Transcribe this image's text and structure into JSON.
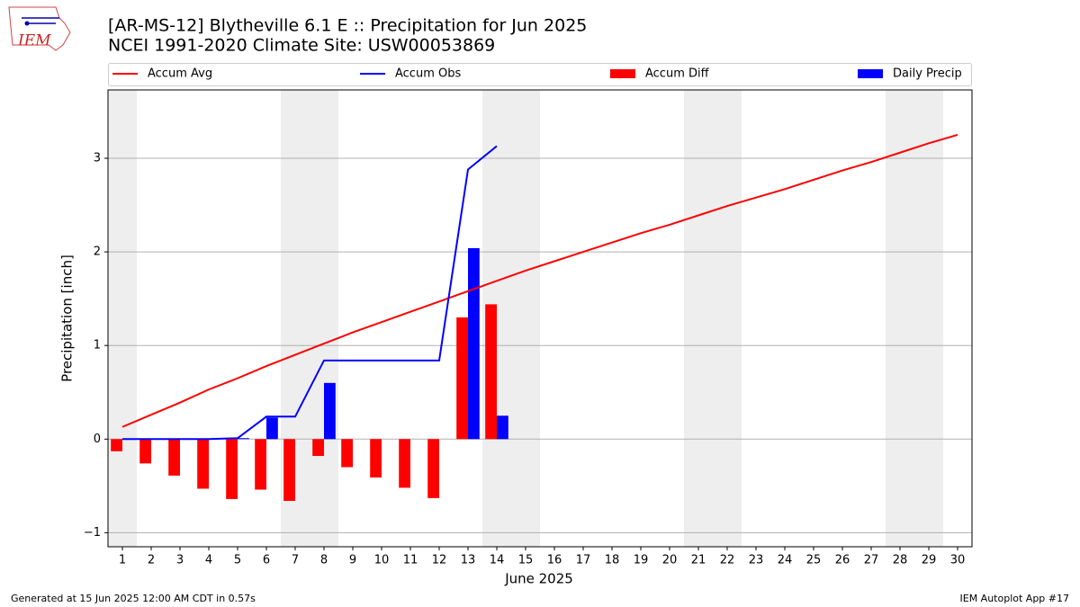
{
  "chart_data": {
    "type": "combo",
    "title": "[AR-MS-12] Blytheville 6.1 E :: Precipitation for Jun 2025",
    "subtitle": "NCEI 1991-2020 Climate Site: USW00053869",
    "logo_text": "IEM",
    "xlabel": "June 2025",
    "ylabel": "Precipitation [inch]",
    "x": [
      1,
      2,
      3,
      4,
      5,
      6,
      7,
      8,
      9,
      10,
      11,
      12,
      13,
      14,
      15,
      16,
      17,
      18,
      19,
      20,
      21,
      22,
      23,
      24,
      25,
      26,
      27,
      28,
      29,
      30
    ],
    "xlim": [
      0.5,
      30.5
    ],
    "xticks": [
      1,
      2,
      3,
      4,
      5,
      6,
      7,
      8,
      9,
      10,
      11,
      12,
      13,
      14,
      15,
      16,
      17,
      18,
      19,
      20,
      21,
      22,
      23,
      24,
      25,
      26,
      27,
      28,
      29,
      30
    ],
    "ylim": [
      -1.15,
      3.73
    ],
    "yticks": [
      {
        "value": -1,
        "label": "−1"
      },
      0,
      1,
      2,
      3
    ],
    "grid": true,
    "series": [
      {
        "name": "Accum Avg",
        "type": "line",
        "color": "#ff0000",
        "values": [
          0.13,
          0.26,
          0.39,
          0.53,
          0.65,
          0.78,
          0.9,
          1.02,
          1.14,
          1.25,
          1.36,
          1.47,
          1.58,
          1.69,
          1.8,
          1.9,
          2.0,
          2.1,
          2.2,
          2.29,
          2.39,
          2.49,
          2.58,
          2.67,
          2.77,
          2.87,
          2.96,
          3.06,
          3.16,
          3.25
        ]
      },
      {
        "name": "Accum Obs",
        "type": "line",
        "color": "#0000ff",
        "values": [
          0,
          0,
          0,
          0,
          0.01,
          0.24,
          0.24,
          0.84,
          0.84,
          0.84,
          0.84,
          0.84,
          2.88,
          3.13,
          null,
          null,
          null,
          null,
          null,
          null,
          null,
          null,
          null,
          null,
          null,
          null,
          null,
          null,
          null,
          null
        ]
      },
      {
        "name": "Accum Diff",
        "type": "bar",
        "side": "left",
        "color": "#ff0000",
        "values": [
          -0.13,
          -0.26,
          -0.39,
          -0.53,
          -0.64,
          -0.54,
          -0.66,
          -0.18,
          -0.3,
          -0.41,
          -0.52,
          -0.63,
          1.3,
          1.44,
          null,
          null,
          null,
          null,
          null,
          null,
          null,
          null,
          null,
          null,
          null,
          null,
          null,
          null,
          null,
          null
        ]
      },
      {
        "name": "Daily Precip",
        "type": "bar",
        "side": "right",
        "color": "#0000ff",
        "values": [
          0,
          0,
          0,
          0,
          0.01,
          0.23,
          0,
          0.6,
          0,
          0,
          0,
          0,
          2.04,
          0.25,
          null,
          null,
          null,
          null,
          null,
          null,
          null,
          null,
          null,
          null,
          null,
          null,
          null,
          null,
          null,
          null
        ]
      }
    ],
    "footer_left": "Generated at 15 Jun 2025 12:00 AM CDT in 0.57s",
    "footer_right": "IEM Autoplot App #17"
  }
}
